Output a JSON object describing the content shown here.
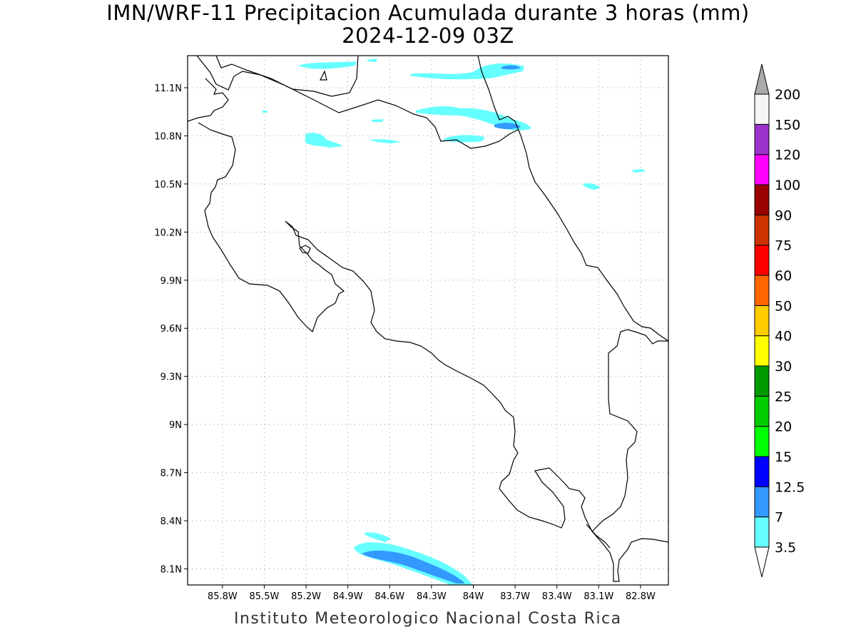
{
  "title": {
    "line1": "IMN/WRF-11 Precipitacion Acumulada durante 3 horas (mm)",
    "line2": "2024-12-09 03Z"
  },
  "footer": "Instituto Meteorologico Nacional Costa Rica",
  "map": {
    "lon_range": [
      -86.05,
      -82.6
    ],
    "lat_range": [
      8.0,
      11.3
    ],
    "lon_ticks": [
      {
        "value": -85.8,
        "label": "85.8W"
      },
      {
        "value": -85.5,
        "label": "85.5W"
      },
      {
        "value": -85.2,
        "label": "85.2W"
      },
      {
        "value": -84.9,
        "label": "84.9W"
      },
      {
        "value": -84.6,
        "label": "84.6W"
      },
      {
        "value": -84.3,
        "label": "84.3W"
      },
      {
        "value": -84.0,
        "label": "84W"
      },
      {
        "value": -83.7,
        "label": "83.7W"
      },
      {
        "value": -83.4,
        "label": "83.4W"
      },
      {
        "value": -83.1,
        "label": "83.1W"
      },
      {
        "value": -82.8,
        "label": "82.8W"
      }
    ],
    "lat_ticks": [
      {
        "value": 8.1,
        "label": "8.1N"
      },
      {
        "value": 8.4,
        "label": "8.4N"
      },
      {
        "value": 8.7,
        "label": "8.7N"
      },
      {
        "value": 9.0,
        "label": "9N"
      },
      {
        "value": 9.3,
        "label": "9.3N"
      },
      {
        "value": 9.6,
        "label": "9.6N"
      },
      {
        "value": 9.9,
        "label": "9.9N"
      },
      {
        "value": 10.2,
        "label": "10.2N"
      },
      {
        "value": 10.5,
        "label": "10.5N"
      },
      {
        "value": 10.8,
        "label": "10.8N"
      },
      {
        "value": 11.1,
        "label": "11.1N"
      }
    ],
    "grid": true
  },
  "colorbar": {
    "levels": [
      {
        "label": "3.5",
        "color": "#66ffff"
      },
      {
        "label": "7",
        "color": "#3399ff"
      },
      {
        "label": "12.5",
        "color": "#0000ff"
      },
      {
        "label": "15",
        "color": "#00ff00"
      },
      {
        "label": "20",
        "color": "#00cc00"
      },
      {
        "label": "25",
        "color": "#009900"
      },
      {
        "label": "30",
        "color": "#ffff00"
      },
      {
        "label": "40",
        "color": "#ffcc00"
      },
      {
        "label": "50",
        "color": "#ff6600"
      },
      {
        "label": "60",
        "color": "#ff0000"
      },
      {
        "label": "75",
        "color": "#cc3300"
      },
      {
        "label": "90",
        "color": "#990000"
      },
      {
        "label": "100",
        "color": "#ff00ff"
      },
      {
        "label": "120",
        "color": "#9933cc"
      },
      {
        "label": "150",
        "color": "#f5f5f5"
      },
      {
        "label": "200",
        "color": "#aaaaaa"
      }
    ]
  }
}
